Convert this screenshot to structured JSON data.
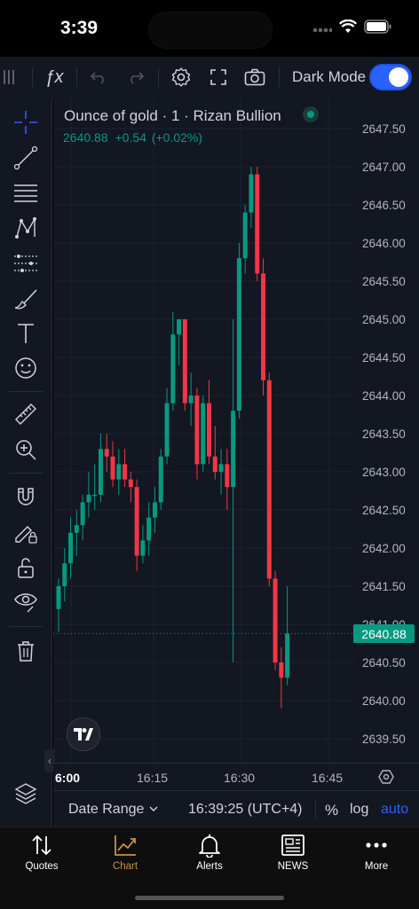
{
  "status_bar": {
    "time": "3:39"
  },
  "toolbar": {
    "fx_label": "ƒx",
    "dark_mode_label": "Dark Mode",
    "dark_mode_on": true
  },
  "legend": {
    "title": "Ounce of gold · 1 · Rizan Bullion",
    "last": "2640.88",
    "change": "+0.54",
    "change_pct": "(+0.02%)"
  },
  "price_axis": {
    "labels": [
      "2647.50",
      "2647.00",
      "2646.50",
      "2646.00",
      "2645.50",
      "2645.00",
      "2644.50",
      "2644.00",
      "2643.50",
      "2643.00",
      "2642.50",
      "2642.00",
      "2641.50",
      "2641.00",
      "2640.50",
      "2640.00",
      "2639.50"
    ],
    "current_price": "2640.88"
  },
  "time_axis": {
    "labels": [
      "6:00",
      "16:15",
      "16:30",
      "16:45"
    ]
  },
  "bottom_bar": {
    "date_range": "Date Range",
    "clock": "16:39:25 (UTC+4)",
    "percent": "%",
    "log": "log",
    "auto": "auto"
  },
  "tabs": [
    {
      "label": "Quotes",
      "icon": "sort-arrows-icon"
    },
    {
      "label": "Chart",
      "icon": "chart-line-icon",
      "active": true
    },
    {
      "label": "Alerts",
      "icon": "bell-icon"
    },
    {
      "label": "NEWS",
      "icon": "newspaper-icon"
    },
    {
      "label": "More",
      "icon": "more-dots-icon"
    }
  ],
  "colors": {
    "up": "#089981",
    "down": "#f23645",
    "background": "#131722",
    "accent": "#2962ff",
    "active_tab": "#c79245"
  },
  "chart_data": {
    "type": "candlestick",
    "symbol": "Ounce of gold",
    "interval": "1",
    "ylim": [
      2639.3,
      2647.75
    ],
    "candles": [
      {
        "o": 2641.2,
        "h": 2641.6,
        "l": 2640.9,
        "c": 2641.5
      },
      {
        "o": 2641.5,
        "h": 2642.0,
        "l": 2641.3,
        "c": 2641.8
      },
      {
        "o": 2641.8,
        "h": 2642.4,
        "l": 2641.6,
        "c": 2642.2
      },
      {
        "o": 2642.2,
        "h": 2642.5,
        "l": 2641.9,
        "c": 2642.3
      },
      {
        "o": 2642.3,
        "h": 2642.7,
        "l": 2642.1,
        "c": 2642.6
      },
      {
        "o": 2642.6,
        "h": 2643.0,
        "l": 2642.4,
        "c": 2642.7
      },
      {
        "o": 2642.7,
        "h": 2643.1,
        "l": 2642.5,
        "c": 2642.7
      },
      {
        "o": 2642.7,
        "h": 2643.5,
        "l": 2642.6,
        "c": 2643.3
      },
      {
        "o": 2643.3,
        "h": 2643.5,
        "l": 2643.0,
        "c": 2643.2
      },
      {
        "o": 2643.2,
        "h": 2643.4,
        "l": 2642.8,
        "c": 2642.9
      },
      {
        "o": 2642.9,
        "h": 2643.3,
        "l": 2642.7,
        "c": 2643.1
      },
      {
        "o": 2643.1,
        "h": 2643.3,
        "l": 2642.8,
        "c": 2642.9
      },
      {
        "o": 2642.9,
        "h": 2643.0,
        "l": 2642.6,
        "c": 2642.8
      },
      {
        "o": 2642.8,
        "h": 2642.9,
        "l": 2641.7,
        "c": 2641.9
      },
      {
        "o": 2641.9,
        "h": 2642.3,
        "l": 2641.8,
        "c": 2642.1
      },
      {
        "o": 2642.1,
        "h": 2642.6,
        "l": 2641.9,
        "c": 2642.4
      },
      {
        "o": 2642.4,
        "h": 2642.8,
        "l": 2642.2,
        "c": 2642.6
      },
      {
        "o": 2642.6,
        "h": 2643.3,
        "l": 2642.5,
        "c": 2643.2
      },
      {
        "o": 2643.2,
        "h": 2644.1,
        "l": 2643.1,
        "c": 2643.9
      },
      {
        "o": 2643.9,
        "h": 2645.1,
        "l": 2643.8,
        "c": 2644.8
      },
      {
        "o": 2644.8,
        "h": 2645.0,
        "l": 2644.4,
        "c": 2645.0
      },
      {
        "o": 2645.0,
        "h": 2645.0,
        "l": 2643.8,
        "c": 2643.9
      },
      {
        "o": 2643.9,
        "h": 2644.3,
        "l": 2643.6,
        "c": 2644.0
      },
      {
        "o": 2644.0,
        "h": 2644.1,
        "l": 2642.9,
        "c": 2643.1
      },
      {
        "o": 2643.1,
        "h": 2644.0,
        "l": 2643.0,
        "c": 2643.9
      },
      {
        "o": 2643.9,
        "h": 2644.2,
        "l": 2643.1,
        "c": 2643.2
      },
      {
        "o": 2643.2,
        "h": 2643.6,
        "l": 2642.9,
        "c": 2643.0
      },
      {
        "o": 2643.0,
        "h": 2643.3,
        "l": 2642.7,
        "c": 2643.1
      },
      {
        "o": 2643.1,
        "h": 2643.3,
        "l": 2642.5,
        "c": 2642.8
      },
      {
        "o": 2642.8,
        "h": 2645.0,
        "l": 2640.5,
        "c": 2643.8
      },
      {
        "o": 2643.8,
        "h": 2646.0,
        "l": 2643.7,
        "c": 2645.8
      },
      {
        "o": 2645.8,
        "h": 2646.5,
        "l": 2645.6,
        "c": 2646.4
      },
      {
        "o": 2646.4,
        "h": 2647.0,
        "l": 2646.2,
        "c": 2646.9
      },
      {
        "o": 2646.9,
        "h": 2647.0,
        "l": 2645.5,
        "c": 2645.6
      },
      {
        "o": 2645.6,
        "h": 2645.8,
        "l": 2644.0,
        "c": 2644.2
      },
      {
        "o": 2644.2,
        "h": 2644.3,
        "l": 2641.5,
        "c": 2641.6
      },
      {
        "o": 2641.6,
        "h": 2641.7,
        "l": 2640.4,
        "c": 2640.5
      },
      {
        "o": 2640.5,
        "h": 2640.7,
        "l": 2639.9,
        "c": 2640.3
      },
      {
        "o": 2640.3,
        "h": 2641.5,
        "l": 2640.2,
        "c": 2640.88
      }
    ]
  }
}
